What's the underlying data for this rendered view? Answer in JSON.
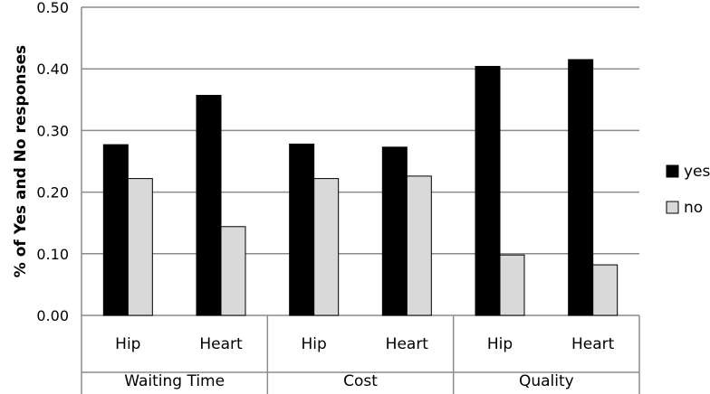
{
  "chart_data": {
    "type": "bar",
    "title": "",
    "ylabel": "% of Yes and No responses",
    "xlabel": "",
    "ylim": [
      0,
      0.5
    ],
    "yticks": [
      "0.00",
      "0.10",
      "0.20",
      "0.30",
      "0.40",
      "0.50"
    ],
    "grid": "horizontal",
    "legend_position": "right",
    "groups": [
      {
        "label": "Waiting Time",
        "categories": [
          "Hip",
          "Heart"
        ]
      },
      {
        "label": "Cost",
        "categories": [
          "Hip",
          "Heart"
        ]
      },
      {
        "label": "Quality",
        "categories": [
          "Hip",
          "Heart"
        ]
      }
    ],
    "series": [
      {
        "name": "yes",
        "color": "#000000",
        "values": [
          0.277,
          0.357,
          0.278,
          0.273,
          0.404,
          0.415
        ]
      },
      {
        "name": "no",
        "color": "#d9d9d9",
        "values": [
          0.222,
          0.144,
          0.222,
          0.226,
          0.098,
          0.082
        ]
      }
    ]
  }
}
